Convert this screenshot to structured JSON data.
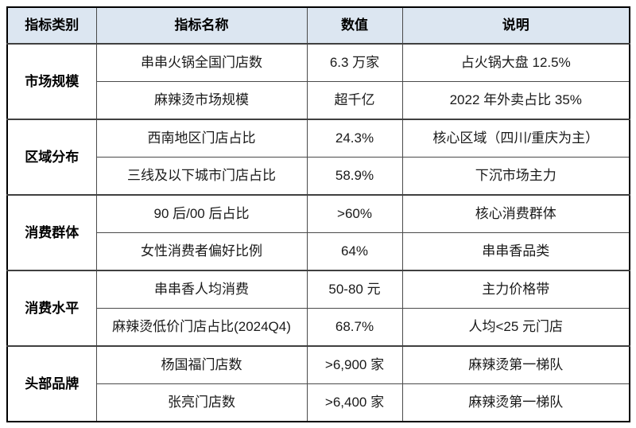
{
  "table": {
    "headers": [
      "指标类别",
      "指标名称",
      "数值",
      "说明"
    ],
    "groups": [
      {
        "category": "市场规模",
        "rows": [
          {
            "name": "串串火锅全国门店数",
            "value": "6.3 万家",
            "note": "占火锅大盘 12.5%"
          },
          {
            "name": "麻辣烫市场规模",
            "value": "超千亿",
            "note": "2022 年外卖占比 35%"
          }
        ]
      },
      {
        "category": "区域分布",
        "rows": [
          {
            "name": "西南地区门店占比",
            "value": "24.3%",
            "note": "核心区域（四川/重庆为主）"
          },
          {
            "name": "三线及以下城市门店占比",
            "value": "58.9%",
            "note": "下沉市场主力"
          }
        ]
      },
      {
        "category": "消费群体",
        "rows": [
          {
            "name": "90 后/00 后占比",
            "value": ">60%",
            "note": "核心消费群体"
          },
          {
            "name": "女性消费者偏好比例",
            "value": "64%",
            "note": "串串香品类"
          }
        ]
      },
      {
        "category": "消费水平",
        "rows": [
          {
            "name": "串串香人均消费",
            "value": "50-80 元",
            "note": "主力价格带"
          },
          {
            "name": "麻辣烫低价门店占比(2024Q4)",
            "value": "68.7%",
            "note": "人均<25 元门店"
          }
        ]
      },
      {
        "category": "头部品牌",
        "rows": [
          {
            "name": "杨国福门店数",
            "value": ">6,900 家",
            "note": "麻辣烫第一梯队"
          },
          {
            "name": "张亮门店数",
            "value": ">6,400 家",
            "note": "麻辣烫第一梯队"
          }
        ]
      }
    ]
  },
  "colors": {
    "header_bg": "#dce6f1",
    "border_inner": "#4a4a4a",
    "border_outer": "#000000",
    "text": "#1a1a1a"
  }
}
